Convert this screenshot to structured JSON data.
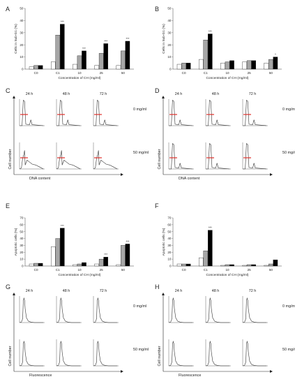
{
  "bar_x_categories": [
    "C0",
    "C1",
    "10",
    "25",
    "50"
  ],
  "bar_x_label": "Concentration of CH (mg/ml)",
  "bar_series_colors": [
    "#ffffff",
    "#a6a6a6",
    "#000000"
  ],
  "timepoints": [
    "24 h",
    "48 h",
    "72 h"
  ],
  "conc_labels": [
    "0 mg/ml",
    "50 mg/ml"
  ],
  "cell_number_label": "Cell number",
  "dna_label": "DNA content",
  "fluor_label": "Fluorescence",
  "chart_data": [
    {
      "panel": "A",
      "type": "bar",
      "ylabel": "Cells in Sub-G1 (%)",
      "yticks": [
        "0",
        "10",
        "20",
        "30",
        "40",
        "50"
      ],
      "ylim": [
        0,
        50
      ],
      "categories": [
        "C0",
        "C1",
        "10",
        "25",
        "50"
      ],
      "series": [
        {
          "values": [
            2,
            6,
            4,
            3,
            3
          ]
        },
        {
          "values": [
            3,
            28,
            11,
            13,
            15
          ]
        },
        {
          "values": [
            3,
            37,
            15,
            21,
            23
          ]
        }
      ],
      "sig": [
        null,
        "***",
        "***",
        "***",
        "***"
      ]
    },
    {
      "panel": "B",
      "type": "bar",
      "ylabel": "Cells in Sub-G1 (%)",
      "yticks": [
        "0",
        "10",
        "20",
        "30",
        "40",
        "50"
      ],
      "ylim": [
        0,
        50
      ],
      "categories": [
        "C0",
        "C1",
        "10",
        "25",
        "50"
      ],
      "series": [
        {
          "values": [
            4,
            8,
            5,
            6,
            5
          ]
        },
        {
          "values": [
            5,
            24,
            6,
            7,
            8
          ]
        },
        {
          "values": [
            5,
            29,
            7,
            7,
            10
          ]
        }
      ],
      "sig": [
        null,
        "***",
        null,
        null,
        "*"
      ]
    },
    {
      "panel": "E",
      "type": "bar",
      "ylabel": "Apoptotic cells (%)",
      "yticks": [
        "0",
        "10",
        "20",
        "30",
        "40",
        "50",
        "60",
        "70"
      ],
      "ylim": [
        0,
        70
      ],
      "categories": [
        "C0",
        "C1",
        "10",
        "25",
        "50"
      ],
      "series": [
        {
          "values": [
            3,
            28,
            2,
            3,
            2
          ]
        },
        {
          "values": [
            4,
            40,
            3,
            10,
            30
          ]
        },
        {
          "values": [
            4,
            55,
            5,
            13,
            32
          ]
        }
      ],
      "sig": [
        null,
        "***",
        null,
        "***",
        "***"
      ]
    },
    {
      "panel": "F",
      "type": "bar",
      "ylabel": "Apoptotic cells (%)",
      "yticks": [
        "0",
        "10",
        "20",
        "30",
        "40",
        "50",
        "60",
        "70"
      ],
      "ylim": [
        0,
        70
      ],
      "categories": [
        "C0",
        "C1",
        "10",
        "25",
        "50"
      ],
      "series": [
        {
          "values": [
            3,
            12,
            1,
            1,
            1
          ]
        },
        {
          "values": [
            3,
            22,
            2,
            2,
            3
          ]
        },
        {
          "values": [
            3,
            52,
            2,
            2,
            9
          ]
        }
      ],
      "sig": [
        null,
        "***",
        null,
        null,
        null
      ]
    }
  ]
}
